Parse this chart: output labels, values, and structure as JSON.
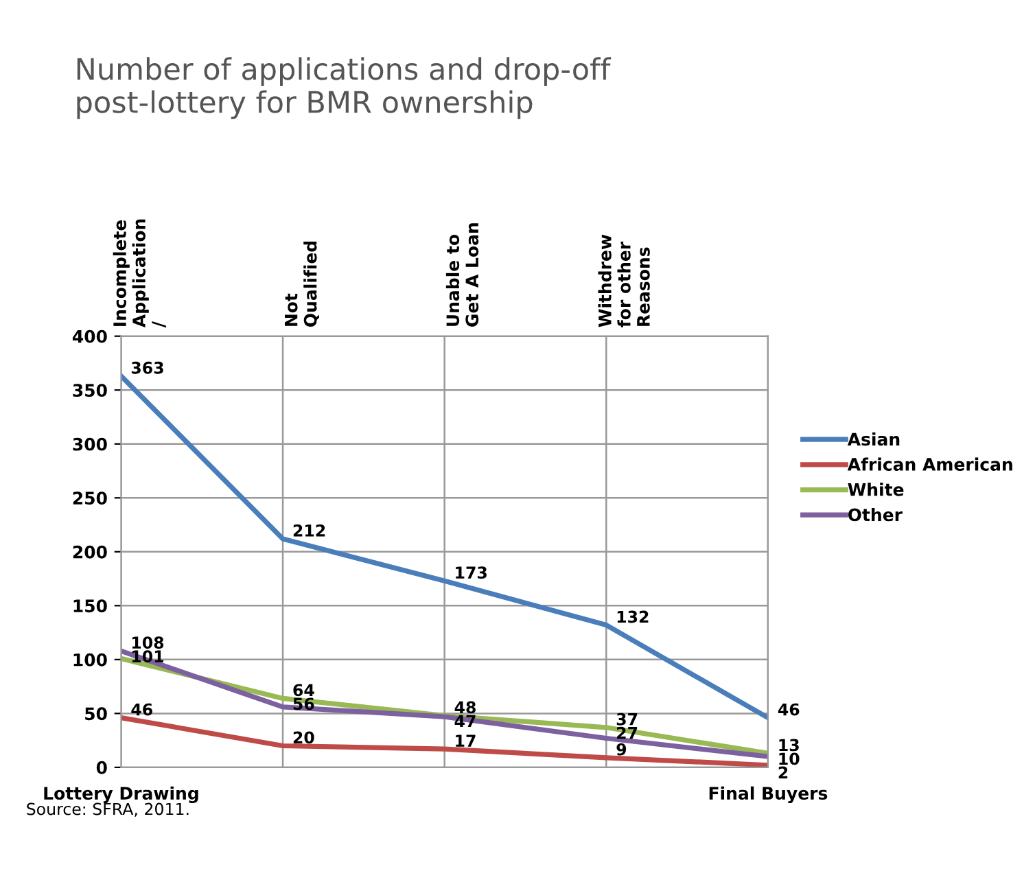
{
  "chart_data": {
    "type": "line",
    "title": "Number of applications and drop-off\npost-lottery for BMR ownership",
    "categories": [
      "Lottery Drawing",
      null,
      null,
      null,
      "Final Buyers"
    ],
    "series": [
      {
        "name": "Asian",
        "color": "#4a7ebb",
        "values": [
          363,
          212,
          173,
          132,
          46
        ]
      },
      {
        "name": "African American",
        "color": "#be4b48",
        "values": [
          46,
          20,
          17,
          9,
          2
        ]
      },
      {
        "name": "White",
        "color": "#98b954",
        "values": [
          101,
          64,
          48,
          37,
          13
        ]
      },
      {
        "name": "Other",
        "color": "#7d60a0",
        "values": [
          108,
          56,
          47,
          27,
          10
        ]
      }
    ],
    "ylim": [
      0,
      400
    ],
    "yticks": [
      0,
      50,
      100,
      150,
      200,
      250,
      300,
      350,
      400
    ],
    "grid": true,
    "legend": "right",
    "data_labels": true,
    "marker": "none",
    "line_style": "solid",
    "annotations": [
      "Incomplete\nApplication\n/",
      "Not\nQualified",
      "Unable to\nGet A Loan",
      "Withdrew\nfor other\nReasons",
      "Source: SFRA, 2011."
    ]
  }
}
